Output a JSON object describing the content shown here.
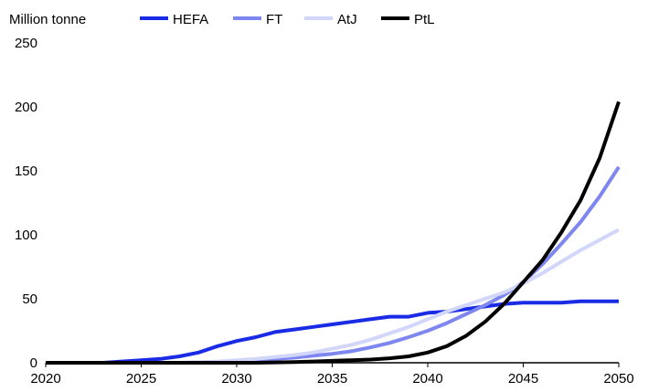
{
  "chart_data": {
    "type": "line",
    "unit_label": "Million tonne",
    "x": [
      2020,
      2021,
      2022,
      2023,
      2024,
      2025,
      2026,
      2027,
      2028,
      2029,
      2030,
      2031,
      2032,
      2033,
      2034,
      2035,
      2036,
      2037,
      2038,
      2039,
      2040,
      2041,
      2042,
      2043,
      2044,
      2045,
      2046,
      2047,
      2048,
      2049,
      2050
    ],
    "x_ticks": [
      2020,
      2025,
      2030,
      2035,
      2040,
      2045,
      2050
    ],
    "y_ticks": [
      0,
      50,
      100,
      150,
      200,
      250
    ],
    "xlim": [
      2020,
      2050
    ],
    "ylim": [
      0,
      250
    ],
    "legend_position": "top",
    "series": [
      {
        "name": "HEFA",
        "color": "#1a2be6",
        "values": [
          0,
          0,
          0,
          0,
          1,
          2,
          3,
          5,
          8,
          13,
          17,
          20,
          24,
          26,
          28,
          30,
          32,
          34,
          36,
          36,
          39,
          40,
          42,
          44,
          46,
          47,
          47,
          47,
          48,
          48,
          48
        ]
      },
      {
        "name": "FT",
        "color": "#7d87ef",
        "values": [
          0,
          0,
          0,
          0,
          0,
          0,
          0,
          0,
          0,
          0.5,
          1,
          2,
          3,
          4,
          5.5,
          7,
          9,
          12,
          15.5,
          20,
          25,
          31,
          38,
          45,
          53,
          63,
          77,
          93,
          110,
          130,
          153
        ]
      },
      {
        "name": "AtJ",
        "color": "#d2d6fa",
        "values": [
          0,
          0,
          0,
          0,
          0,
          0,
          0,
          0,
          0.5,
          1,
          2,
          3,
          4.5,
          6,
          8,
          11,
          14,
          18,
          23,
          28,
          34,
          40,
          45,
          50,
          55,
          62,
          70,
          79,
          88,
          96,
          104
        ]
      },
      {
        "name": "PtL",
        "color": "#000000",
        "values": [
          0,
          0,
          0,
          0,
          0,
          0,
          0,
          0,
          0,
          0,
          0,
          0,
          0.3,
          0.6,
          1,
          1.5,
          2,
          2.5,
          3.5,
          5,
          8,
          13,
          21,
          32,
          46,
          63,
          80,
          102,
          127,
          160,
          204
        ]
      }
    ]
  }
}
